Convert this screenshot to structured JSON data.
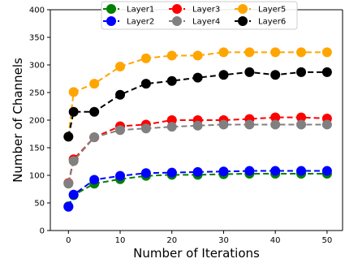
{
  "chart_data": {
    "type": "line",
    "title": "",
    "xlabel": "Number of Iterations",
    "ylabel": "Number of Channels",
    "xlim": [
      -3.5,
      53
    ],
    "ylim": [
      0,
      400
    ],
    "xticks": [
      0,
      10,
      20,
      30,
      40,
      50
    ],
    "yticks": [
      0,
      50,
      100,
      150,
      200,
      250,
      300,
      350,
      400
    ],
    "grid": false,
    "legend_position": "top-center",
    "x": [
      0,
      1,
      5,
      10,
      15,
      20,
      25,
      30,
      35,
      40,
      45,
      50
    ],
    "series": [
      {
        "name": "Layer1",
        "color": "#008000",
        "values": [
          44,
          64,
          85,
          93,
          99,
          101,
          101,
          102,
          103,
          103,
          103,
          103
        ]
      },
      {
        "name": "Layer2",
        "color": "#0000ff",
        "values": [
          43,
          65,
          92,
          99,
          104,
          105,
          106,
          107,
          108,
          108,
          108,
          108
        ]
      },
      {
        "name": "Layer3",
        "color": "#ff0000",
        "values": [
          86,
          129,
          169,
          189,
          192,
          200,
          200,
          200,
          202,
          205,
          205,
          203
        ]
      },
      {
        "name": "Layer4",
        "color": "#808080",
        "values": [
          85,
          126,
          169,
          182,
          185,
          188,
          190,
          192,
          192,
          192,
          192,
          192
        ]
      },
      {
        "name": "Layer5",
        "color": "#ffa500",
        "values": [
          170,
          251,
          266,
          297,
          312,
          317,
          317,
          323,
          323,
          323,
          323,
          323
        ]
      },
      {
        "name": "Layer6",
        "color": "#000000",
        "values": [
          170,
          215,
          215,
          246,
          266,
          271,
          277,
          282,
          287,
          282,
          287,
          287
        ]
      }
    ]
  }
}
